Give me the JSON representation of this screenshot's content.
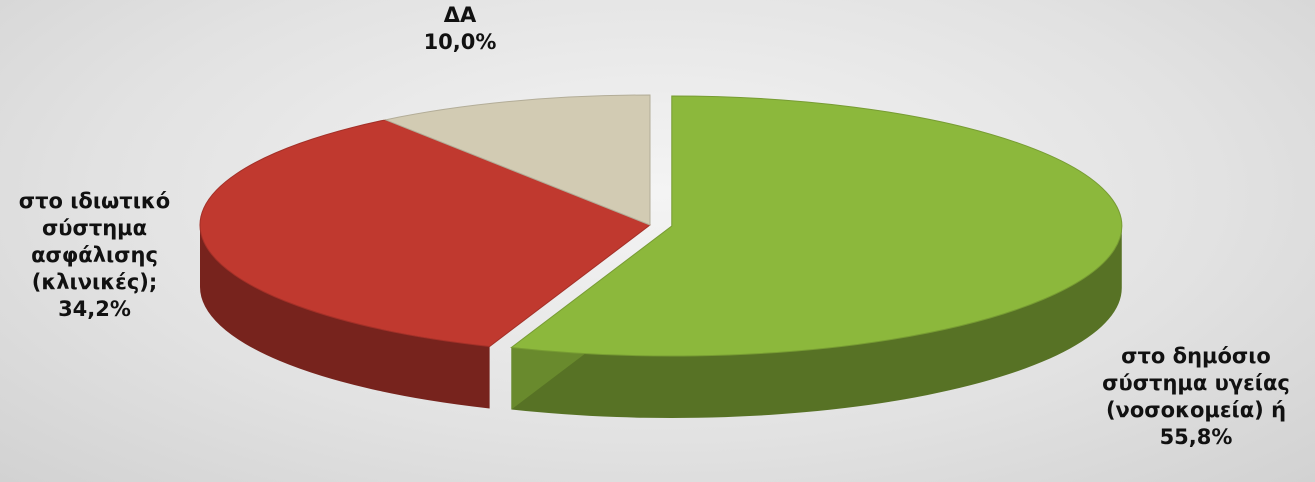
{
  "chart_data": {
    "type": "pie",
    "categories": [
      "στο δημόσιο σύστημα υγείας (νοσοκομεία) ή",
      "στο ιδιωτικό σύστημα ασφάλισης (κλινικές);",
      "ΔΑ"
    ],
    "values": [
      55.8,
      34.2,
      10.0
    ],
    "value_labels": [
      "55,8%",
      "34,2%",
      "10,0%"
    ],
    "colors": [
      "#8cb83c",
      "#c0392f",
      "#d2cbb3"
    ]
  }
}
